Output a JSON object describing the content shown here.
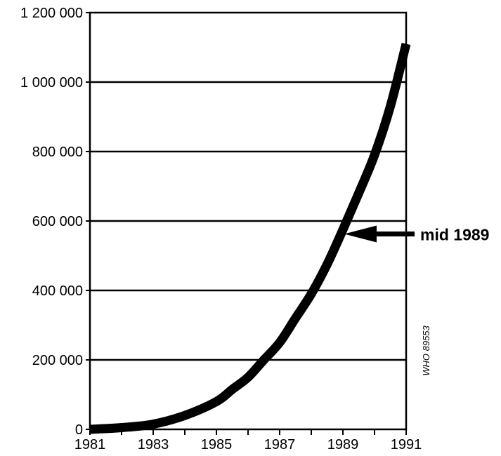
{
  "chart_data": {
    "type": "line",
    "title": "",
    "xlabel": "",
    "ylabel": "",
    "xlim": [
      1981,
      1991
    ],
    "ylim": [
      0,
      1200000
    ],
    "x_ticks": [
      1981,
      1983,
      1985,
      1987,
      1989,
      1991
    ],
    "x_tick_labels": [
      "1981",
      "1983",
      "1985",
      "1987",
      "1989",
      "1991"
    ],
    "y_ticks": [
      0,
      200000,
      400000,
      600000,
      800000,
      1000000,
      1200000
    ],
    "y_tick_labels": [
      "0",
      "200 000",
      "400 000",
      "600 000",
      "800 000",
      "1 000 000",
      "1 200 000"
    ],
    "grid": "horizontal",
    "legend": "none",
    "line_color": "#000000",
    "series": [
      {
        "x": [
          1981,
          1982,
          1983,
          1984,
          1985,
          1985.5,
          1986,
          1986.5,
          1987,
          1987.5,
          1988,
          1988.5,
          1989,
          1989.5,
          1990,
          1990.5,
          1991
        ],
        "values": [
          0,
          5000,
          15000,
          40000,
          80000,
          115000,
          150000,
          200000,
          250000,
          320000,
          390000,
          475000,
          575000,
          680000,
          790000,
          930000,
          1110000
        ]
      }
    ],
    "annotations": [
      {
        "text": "mid 1989",
        "x": 1989,
        "y": 500000,
        "type": "arrow"
      }
    ],
    "watermark": "WHO 89553"
  }
}
